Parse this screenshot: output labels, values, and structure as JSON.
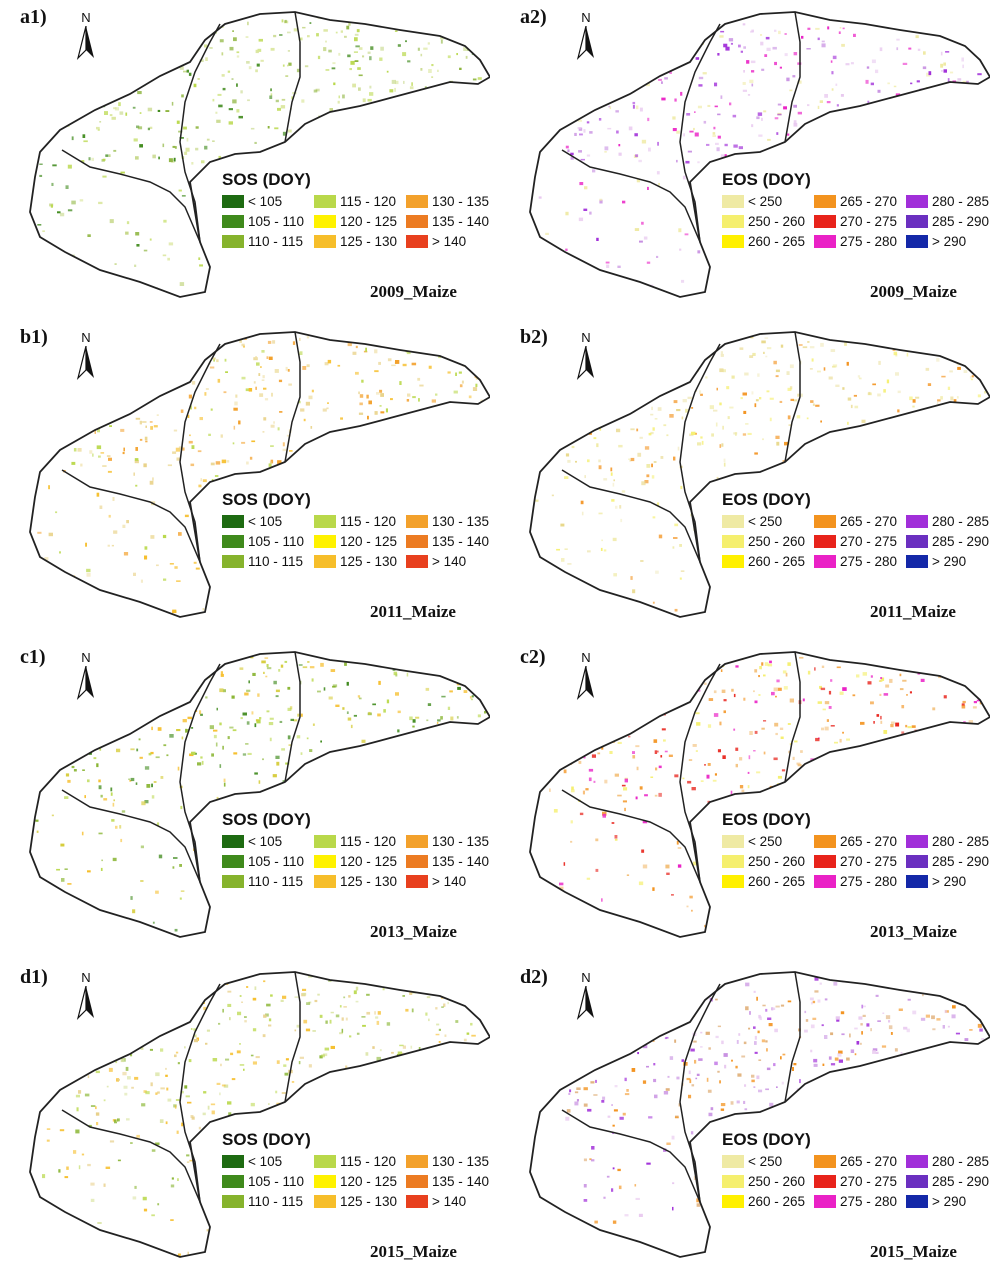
{
  "north_letter": "N",
  "legends": {
    "SOS": {
      "title": "SOS (DOY)",
      "items": [
        {
          "label": "< 105",
          "color": "#1e6b12"
        },
        {
          "label": "105 - 110",
          "color": "#3f8a1c"
        },
        {
          "label": "110 - 115",
          "color": "#86b32d"
        },
        {
          "label": "115 - 120",
          "color": "#b9d84a"
        },
        {
          "label": "120 - 125",
          "color": "#fff200"
        },
        {
          "label": "125 - 130",
          "color": "#f6be2a"
        },
        {
          "label": "130 - 135",
          "color": "#f3a12c"
        },
        {
          "label": "135 - 140",
          "color": "#ec7b22"
        },
        {
          "label": "> 140",
          "color": "#e8401e"
        }
      ]
    },
    "EOS": {
      "title": "EOS (DOY)",
      "items": [
        {
          "label": "< 250",
          "color": "#efeaa4"
        },
        {
          "label": "250 - 260",
          "color": "#f5ef6e"
        },
        {
          "label": "260 - 265",
          "color": "#fff000"
        },
        {
          "label": "265 - 270",
          "color": "#f3931f"
        },
        {
          "label": "270 - 275",
          "color": "#e8231b"
        },
        {
          "label": "275 - 280",
          "color": "#ea22c6"
        },
        {
          "label": "280 - 285",
          "color": "#a12fd9"
        },
        {
          "label": "285 - 290",
          "color": "#6b2fc0"
        },
        {
          "label": "> 290",
          "color": "#1428a8"
        }
      ]
    }
  },
  "panels": [
    {
      "label": "a1)",
      "legend": "SOS",
      "year": "2009_Maize",
      "colors": [
        "#8bb33a",
        "#b9d84a",
        "#d9e59a",
        "#3f8a1c",
        "#c7d88a"
      ]
    },
    {
      "label": "a2)",
      "legend": "EOS",
      "year": "2009_Maize",
      "colors": [
        "#a12fd9",
        "#c58ae0",
        "#e8c8ef",
        "#ea22c6",
        "#efeaa4"
      ]
    },
    {
      "label": "b1)",
      "legend": "SOS",
      "year": "2011_Maize",
      "colors": [
        "#f6be2a",
        "#e9d38a",
        "#f3a12c",
        "#b9d84a",
        "#efe0a8"
      ]
    },
    {
      "label": "b2)",
      "legend": "EOS",
      "year": "2011_Maize",
      "colors": [
        "#efeaa4",
        "#f5ef6e",
        "#e8d88a",
        "#f3931f",
        "#f2ecc4"
      ]
    },
    {
      "label": "c1)",
      "legend": "SOS",
      "year": "2013_Maize",
      "colors": [
        "#86b32d",
        "#b9d84a",
        "#d6cc3a",
        "#3f8a1c",
        "#f6be2a"
      ]
    },
    {
      "label": "c2)",
      "legend": "EOS",
      "year": "2013_Maize",
      "colors": [
        "#f3931f",
        "#e8231b",
        "#f5ef6e",
        "#ea22c6",
        "#f3c07a"
      ]
    },
    {
      "label": "d1)",
      "legend": "SOS",
      "year": "2015_Maize",
      "colors": [
        "#b9d84a",
        "#86b32d",
        "#e8d08a",
        "#f6be2a",
        "#d9e3a0"
      ]
    },
    {
      "label": "d2)",
      "legend": "EOS",
      "year": "2015_Maize",
      "colors": [
        "#c58ae0",
        "#e0b07a",
        "#a12fd9",
        "#f3931f",
        "#e8c8ef"
      ]
    }
  ]
}
